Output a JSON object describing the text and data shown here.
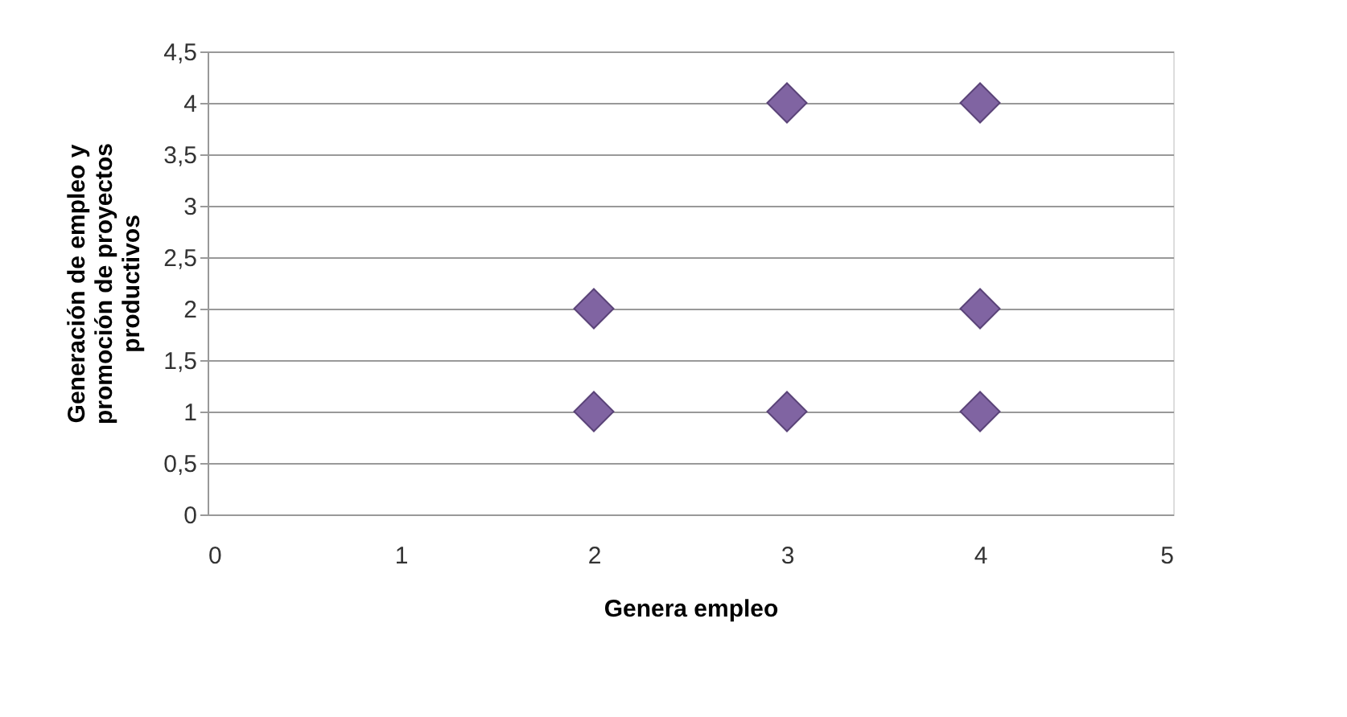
{
  "chart_data": {
    "type": "scatter",
    "xlabel": "Genera empleo",
    "ylabel": "Generación de empleo y promoción de proyectos productivos",
    "x": [
      3,
      4,
      2,
      4,
      2,
      3,
      4
    ],
    "series": [
      {
        "color": "#8064a2",
        "values": [
          4,
          4,
          2,
          2,
          1,
          1,
          1
        ]
      }
    ],
    "xlim": [
      0,
      5
    ],
    "xticks": [
      0,
      1,
      2,
      3,
      4,
      5
    ],
    "ylim": [
      0,
      4.5
    ],
    "yticks": [
      0,
      {
        "value": 0.5,
        "label": "0,5"
      },
      1,
      {
        "value": 1.5,
        "label": "1,5"
      },
      2,
      {
        "value": 2.5,
        "label": "2,5"
      },
      3,
      {
        "value": 3.5,
        "label": "3,5"
      },
      4,
      {
        "value": 4.5,
        "label": "4,5"
      }
    ],
    "grid": "y",
    "marker": "diamond",
    "legend": false
  }
}
